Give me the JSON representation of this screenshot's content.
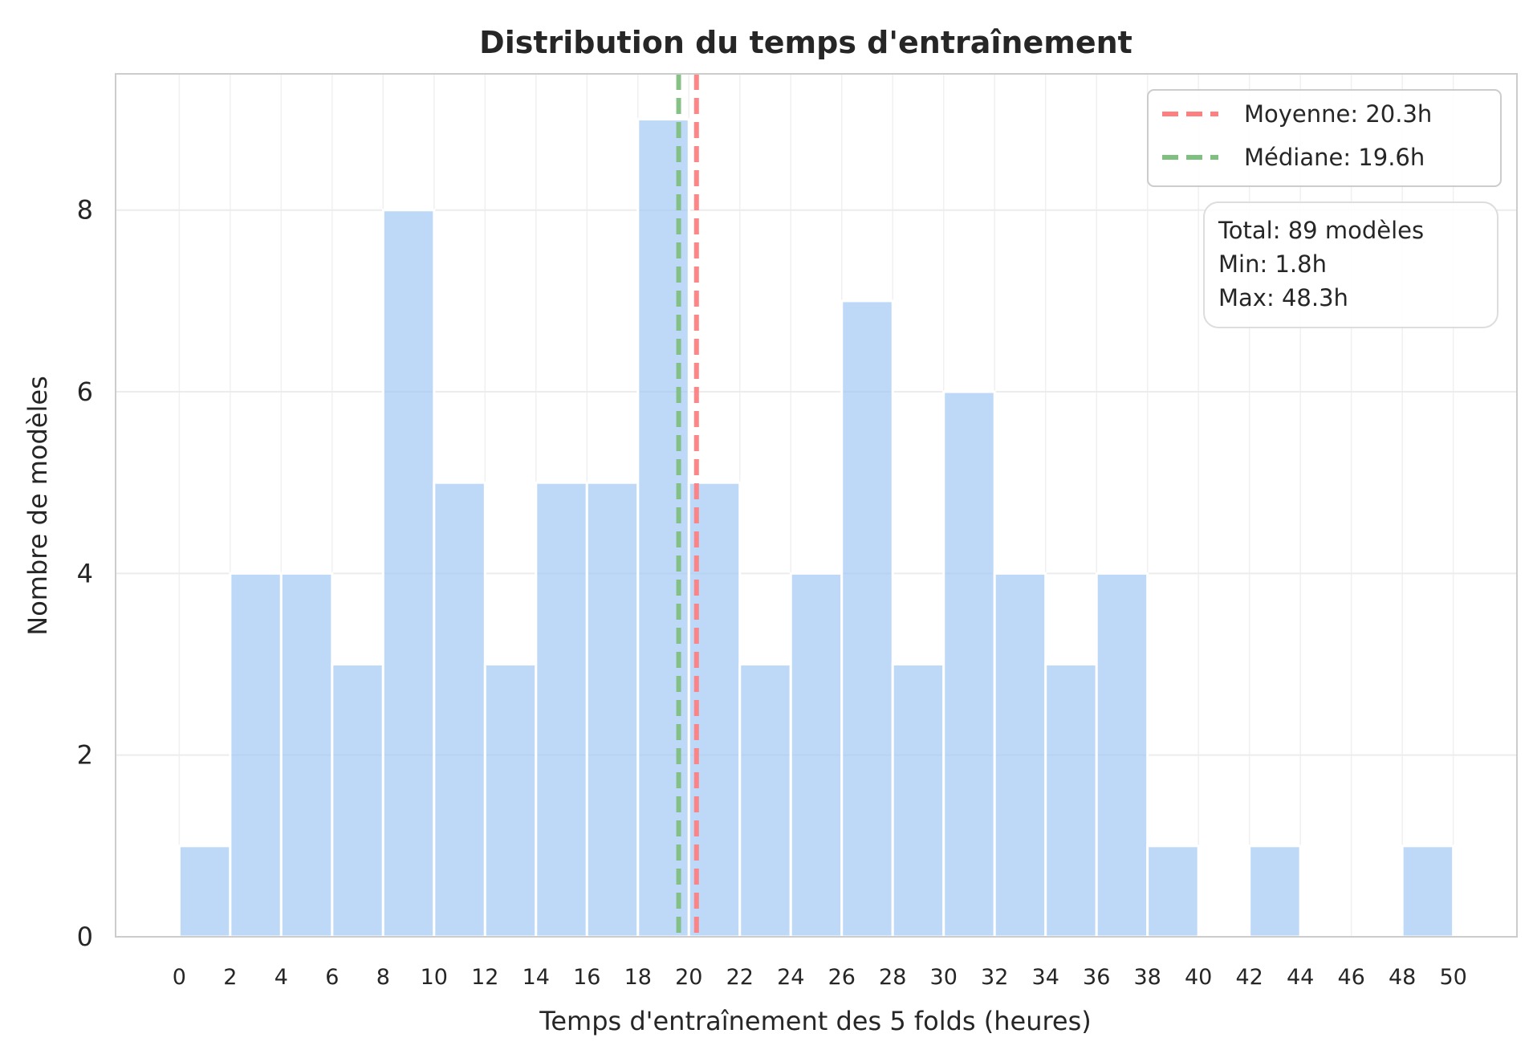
{
  "chart_data": {
    "type": "bar",
    "title": "Distribution du temps d'entraînement",
    "xlabel": "Temps d'entraînement des 5 folds (heures)",
    "ylabel": "Nombre de modèles",
    "xlim": [
      -5,
      105
    ],
    "ylim": [
      0,
      9.5
    ],
    "x_ticks": [
      0,
      2,
      4,
      6,
      8,
      10,
      12,
      14,
      16,
      18,
      20,
      22,
      24,
      26,
      28,
      30,
      32,
      34,
      36,
      38,
      40,
      42,
      44,
      46,
      48,
      50
    ],
    "y_ticks": [
      0,
      2,
      4,
      6,
      8
    ],
    "bins": [
      {
        "x0": 0,
        "x1": 2,
        "count": 1
      },
      {
        "x0": 2,
        "x1": 4,
        "count": 4
      },
      {
        "x0": 4,
        "x1": 6,
        "count": 4
      },
      {
        "x0": 6,
        "x1": 8,
        "count": 3
      },
      {
        "x0": 8,
        "x1": 10,
        "count": 8
      },
      {
        "x0": 10,
        "x1": 12,
        "count": 5
      },
      {
        "x0": 12,
        "x1": 14,
        "count": 3
      },
      {
        "x0": 14,
        "x1": 16,
        "count": 5
      },
      {
        "x0": 16,
        "x1": 18,
        "count": 5
      },
      {
        "x0": 18,
        "x1": 20,
        "count": 9
      },
      {
        "x0": 20,
        "x1": 22,
        "count": 5
      },
      {
        "x0": 22,
        "x1": 24,
        "count": 3
      },
      {
        "x0": 24,
        "x1": 26,
        "count": 4
      },
      {
        "x0": 26,
        "x1": 28,
        "count": 7
      },
      {
        "x0": 28,
        "x1": 30,
        "count": 3
      },
      {
        "x0": 30,
        "x1": 32,
        "count": 6
      },
      {
        "x0": 32,
        "x1": 34,
        "count": 4
      },
      {
        "x0": 34,
        "x1": 36,
        "count": 3
      },
      {
        "x0": 36,
        "x1": 38,
        "count": 4
      },
      {
        "x0": 38,
        "x1": 40,
        "count": 1
      },
      {
        "x0": 40,
        "x1": 42,
        "count": 0
      },
      {
        "x0": 42,
        "x1": 44,
        "count": 1
      },
      {
        "x0": 44,
        "x1": 46,
        "count": 0
      },
      {
        "x0": 46,
        "x1": 48,
        "count": 0
      },
      {
        "x0": 48,
        "x1": 50,
        "count": 1
      }
    ],
    "tick_label_scale": 0.5,
    "bar_color": "#a1c9f4",
    "mean": {
      "value": 20.3,
      "label": "Moyenne: 20.3h",
      "color": "#ff7f7f"
    },
    "median": {
      "value": 19.6,
      "label": "Médiane: 19.6h",
      "color": "#7fbf7f"
    },
    "stats_lines": [
      "Total: 89 modèles",
      "Min: 1.8h",
      "Max: 48.3h"
    ],
    "grid": true,
    "legend_position": "top-right"
  }
}
